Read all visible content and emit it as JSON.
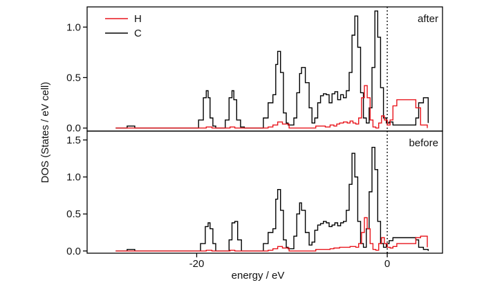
{
  "colors": {
    "H": "#e8141b",
    "C": "#000000",
    "axis": "#000000"
  },
  "chart_data": {
    "type": "line",
    "xlabel": "energy / eV",
    "ylabel": "DOS (States / eV cell)",
    "xlim": [
      -31.5,
      5.8
    ],
    "x_ticks": [
      -20,
      0
    ],
    "x_tick_labels": [
      "-20",
      "0"
    ],
    "fermi_level": 0,
    "grid": false,
    "legend": {
      "placement": "top-left",
      "entries": [
        "H",
        "C"
      ]
    },
    "panels": [
      {
        "id": "after",
        "label": "after",
        "ylim": [
          -0.03,
          1.2
        ],
        "y_ticks": [
          0.0,
          0.5,
          1.0
        ],
        "y_tick_labels": [
          "0.0",
          "0.5",
          "1.0"
        ],
        "series": [
          {
            "name": "C",
            "color": "#000000",
            "x": [
              -28.5,
              -27.3,
              -26.9,
              -26.5,
              -20.3,
              -19.8,
              -19.3,
              -19.0,
              -18.8,
              -18.6,
              -18.3,
              -18.0,
              -17.5,
              -17.0,
              -16.6,
              -16.3,
              -16.1,
              -15.8,
              -15.4,
              -15.0,
              -13.3,
              -13.0,
              -12.5,
              -12.0,
              -11.7,
              -11.5,
              -11.2,
              -10.9,
              -10.6,
              -10.4,
              -10.2,
              -10.0,
              -9.8,
              -9.5,
              -9.2,
              -9.0,
              -8.6,
              -8.2,
              -7.9,
              -7.6,
              -7.3,
              -7.0,
              -6.7,
              -6.4,
              -6.1,
              -5.8,
              -5.5,
              -5.2,
              -4.9,
              -4.6,
              -4.3,
              -4.0,
              -3.7,
              -3.4,
              -3.1,
              -2.8,
              -2.5,
              -2.2,
              -1.9,
              -1.6,
              -1.3,
              -1.0,
              -0.7,
              -0.4,
              -0.1,
              0.2,
              0.6,
              1.0,
              3.0,
              3.3,
              3.8,
              4.3
            ],
            "y": [
              0.0,
              0.02,
              0.02,
              0.0,
              0.0,
              0.08,
              0.3,
              0.37,
              0.3,
              0.1,
              0.02,
              0.0,
              0.0,
              0.08,
              0.3,
              0.37,
              0.28,
              0.08,
              0.01,
              0.0,
              0.0,
              0.1,
              0.25,
              0.33,
              0.63,
              0.76,
              0.55,
              0.15,
              0.05,
              0.03,
              0.03,
              0.03,
              0.1,
              0.35,
              0.54,
              0.6,
              0.45,
              0.2,
              0.05,
              0.1,
              0.25,
              0.32,
              0.34,
              0.33,
              0.25,
              0.34,
              0.36,
              0.28,
              0.33,
              0.3,
              0.37,
              0.55,
              0.92,
              1.11,
              0.8,
              0.35,
              0.1,
              0.05,
              0.2,
              0.6,
              1.16,
              0.9,
              0.4,
              0.1,
              0.05,
              0.06,
              0.03,
              0.03,
              0.1,
              0.25,
              0.3,
              0.05
            ]
          },
          {
            "name": "H",
            "color": "#e8141b",
            "x": [
              -28.5,
              -20.3,
              -19.5,
              -19.0,
              -18.4,
              -17.7,
              -17.0,
              -16.5,
              -16.0,
              -15.4,
              -13.2,
              -12.5,
              -12.0,
              -11.5,
              -11.0,
              -10.3,
              -9.5,
              -8.8,
              -8.0,
              -7.5,
              -7.0,
              -6.5,
              -6.0,
              -5.6,
              -5.3,
              -5.0,
              -4.6,
              -4.2,
              -3.9,
              -3.6,
              -3.3,
              -3.0,
              -2.7,
              -2.4,
              -2.1,
              -1.8,
              -1.5,
              -1.2,
              -0.9,
              -0.6,
              -0.3,
              0.0,
              0.3,
              0.6,
              1.0,
              3.0,
              3.5,
              4.2
            ],
            "y": [
              0.0,
              0.0,
              0.0,
              0.01,
              0.0,
              0.0,
              0.0,
              0.01,
              0.0,
              0.0,
              0.0,
              0.01,
              0.03,
              0.06,
              0.04,
              0.0,
              0.0,
              0.0,
              0.0,
              0.02,
              0.02,
              0.01,
              0.03,
              0.02,
              0.04,
              0.05,
              0.06,
              0.05,
              0.07,
              0.05,
              0.04,
              0.1,
              0.3,
              0.42,
              0.3,
              0.08,
              0.01,
              0.0,
              0.05,
              0.12,
              0.08,
              0.03,
              0.08,
              0.22,
              0.28,
              0.2,
              0.03,
              0.0
            ]
          }
        ]
      },
      {
        "id": "before",
        "label": "before",
        "ylim": [
          -0.03,
          1.62
        ],
        "y_ticks": [
          0.0,
          0.5,
          1.0,
          1.5
        ],
        "y_tick_labels": [
          "0.0",
          "0.5",
          "1.0",
          "1.5"
        ],
        "series": [
          {
            "name": "C",
            "color": "#000000",
            "x": [
              -28.5,
              -27.3,
              -26.9,
              -26.5,
              -20.0,
              -19.6,
              -19.1,
              -18.8,
              -18.6,
              -18.3,
              -18.0,
              -17.0,
              -16.6,
              -16.3,
              -16.0,
              -15.7,
              -15.3,
              -13.3,
              -13.0,
              -12.5,
              -12.0,
              -11.7,
              -11.5,
              -11.2,
              -10.9,
              -10.6,
              -10.4,
              -10.2,
              -10.0,
              -9.8,
              -9.5,
              -9.2,
              -9.0,
              -8.6,
              -8.2,
              -7.9,
              -7.6,
              -7.3,
              -7.0,
              -6.7,
              -6.4,
              -6.1,
              -5.8,
              -5.5,
              -5.2,
              -4.9,
              -4.6,
              -4.3,
              -4.0,
              -3.7,
              -3.4,
              -3.1,
              -2.8,
              -2.5,
              -2.2,
              -1.9,
              -1.6,
              -1.3,
              -1.0,
              -0.7,
              -0.4,
              -0.1,
              0.2,
              0.6,
              1.0,
              3.0,
              3.3,
              3.8,
              4.3
            ],
            "y": [
              0.0,
              0.02,
              0.02,
              0.0,
              0.0,
              0.1,
              0.33,
              0.38,
              0.3,
              0.1,
              0.0,
              0.0,
              0.15,
              0.38,
              0.4,
              0.15,
              0.0,
              0.0,
              0.1,
              0.25,
              0.3,
              0.7,
              0.83,
              0.55,
              0.15,
              0.05,
              0.03,
              0.03,
              0.03,
              0.2,
              0.5,
              0.65,
              0.55,
              0.25,
              0.08,
              0.12,
              0.28,
              0.35,
              0.37,
              0.4,
              0.38,
              0.33,
              0.35,
              0.38,
              0.34,
              0.38,
              0.4,
              0.55,
              0.9,
              1.32,
              1.0,
              0.4,
              0.1,
              0.05,
              0.3,
              0.8,
              1.4,
              1.1,
              0.4,
              0.1,
              0.05,
              0.1,
              0.14,
              0.18,
              0.18,
              0.15,
              0.05,
              0.02,
              0.0
            ]
          },
          {
            "name": "H",
            "color": "#e8141b",
            "x": [
              -28.5,
              -20.3,
              -19.5,
              -19.0,
              -18.4,
              -17.7,
              -17.0,
              -16.5,
              -16.0,
              -15.4,
              -13.2,
              -12.5,
              -12.0,
              -11.5,
              -11.0,
              -10.3,
              -9.5,
              -8.8,
              -8.0,
              -7.5,
              -7.0,
              -6.5,
              -6.0,
              -5.6,
              -5.3,
              -5.0,
              -4.6,
              -4.2,
              -3.9,
              -3.6,
              -3.3,
              -3.0,
              -2.7,
              -2.4,
              -2.1,
              -1.8,
              -1.5,
              -1.2,
              -0.9,
              -0.6,
              -0.3,
              0.0,
              0.3,
              0.6,
              1.0,
              3.0,
              3.5,
              4.2
            ],
            "y": [
              0.0,
              0.0,
              0.0,
              0.01,
              0.0,
              0.0,
              0.0,
              0.01,
              0.0,
              0.0,
              0.0,
              0.01,
              0.03,
              0.06,
              0.04,
              0.0,
              0.0,
              0.0,
              0.0,
              0.02,
              0.02,
              0.02,
              0.03,
              0.04,
              0.04,
              0.05,
              0.05,
              0.05,
              0.06,
              0.06,
              0.05,
              0.1,
              0.25,
              0.45,
              0.3,
              0.1,
              0.02,
              0.01,
              0.1,
              0.18,
              0.1,
              0.05,
              0.04,
              0.06,
              0.1,
              0.18,
              0.2,
              0.05
            ]
          }
        ]
      }
    ]
  }
}
